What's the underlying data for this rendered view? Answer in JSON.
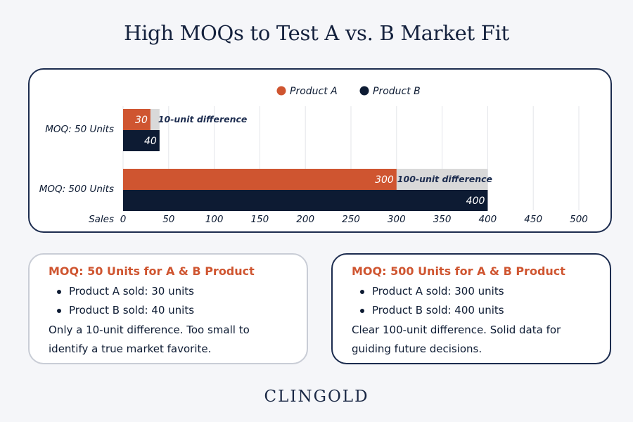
{
  "title": "High MOQs to Test A vs. B Market Fit",
  "colors": {
    "product_a": "#cf5530",
    "product_b": "#0d1b33",
    "diff": "#d9d9d9",
    "accent": "#cf5530"
  },
  "chart_data": {
    "type": "bar",
    "orientation": "horizontal",
    "categories": [
      "MOQ: 50 Units",
      "MOQ: 500 Units"
    ],
    "series": [
      {
        "name": "Product A",
        "values": [
          30,
          300
        ]
      },
      {
        "name": "Product B",
        "values": [
          40,
          400
        ]
      }
    ],
    "differences": [
      {
        "category": "MOQ: 50 Units",
        "from": 30,
        "to": 40,
        "label": "10-unit difference"
      },
      {
        "category": "MOQ: 500 Units",
        "from": 300,
        "to": 400,
        "label": "100-unit difference"
      }
    ],
    "xlabel": "Sales",
    "xlim": [
      0,
      500
    ],
    "xticks": [
      0,
      50,
      100,
      150,
      200,
      250,
      300,
      350,
      400,
      450,
      500
    ],
    "legend_position": "top-center",
    "grid": true
  },
  "cards": [
    {
      "heading": "MOQ: 50 Units for A & B Product",
      "items": [
        "Product A sold: 30 units",
        "Product B sold: 40 units"
      ],
      "summary": "Only a 10-unit difference. Too small to identify a true market favorite."
    },
    {
      "heading": "MOQ: 500 Units for A & B Product",
      "items": [
        "Product A sold: 300 units",
        "Product B sold: 400 units"
      ],
      "summary": "Clear 100-unit difference. Solid data for guiding future decisions."
    }
  ],
  "brand": {
    "name": "CLINGOLD"
  }
}
